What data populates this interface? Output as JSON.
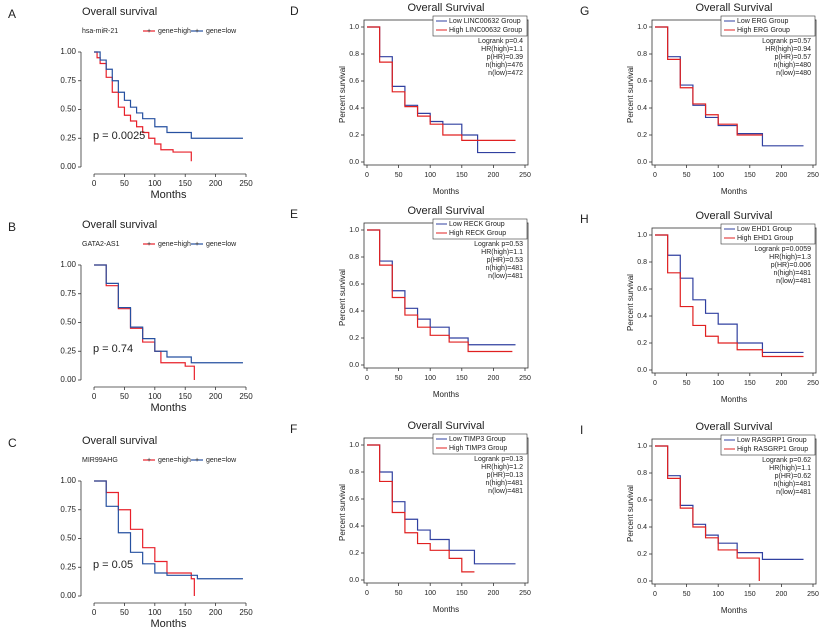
{
  "chart_data": [
    {
      "label": "A",
      "type": "line",
      "step": true,
      "style": "plain",
      "title": "Overall survival",
      "xlabel": "Months",
      "legend_title": "hsa-miR-21",
      "legend": "top",
      "annotations": [
        "p = 0.0025"
      ],
      "xlim": [
        -5,
        250
      ],
      "ylim": [
        0,
        1
      ],
      "xticks": [
        0,
        50,
        100,
        150,
        200,
        250
      ],
      "yticks": [
        {
          "value": 0,
          "label": "0.00"
        },
        {
          "value": 0.25,
          "label": "0.25"
        },
        {
          "value": 0.5,
          "label": "0.50"
        },
        {
          "value": 0.75,
          "label": "0.75"
        },
        {
          "value": 1,
          "label": "1.00"
        }
      ],
      "series": [
        {
          "name": "gene=high",
          "color": "#e8202a",
          "x": [
            0,
            5,
            10,
            20,
            30,
            40,
            50,
            60,
            70,
            80,
            90,
            100,
            110,
            130,
            160
          ],
          "values": [
            1,
            0.95,
            0.9,
            0.78,
            0.65,
            0.52,
            0.45,
            0.4,
            0.35,
            0.3,
            0.25,
            0.2,
            0.15,
            0.13,
            0.05
          ]
        },
        {
          "name": "gene=low",
          "color": "#2650a0",
          "x": [
            0,
            10,
            20,
            30,
            40,
            50,
            60,
            70,
            80,
            100,
            120,
            160,
            245
          ],
          "values": [
            1,
            0.93,
            0.85,
            0.75,
            0.65,
            0.58,
            0.52,
            0.47,
            0.42,
            0.35,
            0.3,
            0.25,
            0.25
          ]
        }
      ]
    },
    {
      "label": "B",
      "type": "line",
      "step": true,
      "style": "plain",
      "title": "Overall survival",
      "xlabel": "Months",
      "legend_title": "GATA2-AS1",
      "legend": "top",
      "annotations": [
        "p = 0.74"
      ],
      "xlim": [
        -5,
        250
      ],
      "ylim": [
        0,
        1
      ],
      "xticks": [
        0,
        50,
        100,
        150,
        200,
        250
      ],
      "yticks": [
        {
          "value": 0,
          "label": "0.00"
        },
        {
          "value": 0.25,
          "label": "0.25"
        },
        {
          "value": 0.5,
          "label": "0.50"
        },
        {
          "value": 0.75,
          "label": "0.75"
        },
        {
          "value": 1,
          "label": "1.00"
        }
      ],
      "series": [
        {
          "name": "gene=high",
          "color": "#e8202a",
          "x": [
            0,
            20,
            40,
            60,
            80,
            100,
            110,
            150,
            165
          ],
          "values": [
            1,
            0.82,
            0.62,
            0.45,
            0.33,
            0.25,
            0.15,
            0.12,
            0
          ]
        },
        {
          "name": "gene=low",
          "color": "#2650a0",
          "x": [
            0,
            20,
            40,
            60,
            80,
            100,
            120,
            160,
            245
          ],
          "values": [
            1,
            0.84,
            0.63,
            0.46,
            0.36,
            0.25,
            0.2,
            0.15,
            0.15
          ]
        }
      ]
    },
    {
      "label": "C",
      "type": "line",
      "step": true,
      "style": "plain",
      "title": "Overall survival",
      "xlabel": "Months",
      "legend_title": "MIR99AHG",
      "legend": "top",
      "annotations": [
        "p = 0.05"
      ],
      "xlim": [
        -5,
        250
      ],
      "ylim": [
        0,
        1
      ],
      "xticks": [
        0,
        50,
        100,
        150,
        200,
        250
      ],
      "yticks": [
        {
          "value": 0,
          "label": "0.00"
        },
        {
          "value": 0.25,
          "label": "0.25"
        },
        {
          "value": 0.5,
          "label": "0.50"
        },
        {
          "value": 0.75,
          "label": "0.75"
        },
        {
          "value": 1,
          "label": "1.00"
        }
      ],
      "series": [
        {
          "name": "gene=high",
          "color": "#e8202a",
          "x": [
            0,
            20,
            40,
            60,
            80,
            100,
            120,
            160,
            165
          ],
          "values": [
            1,
            0.9,
            0.75,
            0.58,
            0.42,
            0.3,
            0.2,
            0.15,
            0
          ]
        },
        {
          "name": "gene=low",
          "color": "#2650a0",
          "x": [
            0,
            20,
            40,
            60,
            80,
            100,
            120,
            170,
            245
          ],
          "values": [
            1,
            0.78,
            0.55,
            0.38,
            0.28,
            0.2,
            0.18,
            0.15,
            0.15
          ]
        }
      ]
    },
    {
      "label": "D",
      "type": "line",
      "step": true,
      "style": "framed",
      "title": "Overall Survival",
      "xlabel": "Months",
      "ylabel": "Percent survival",
      "legend": "top-right",
      "annotations": [
        "Logrank p=0.4",
        "HR(high)=1.1",
        "p(HR)=0.39",
        "n(high)=476",
        "n(low)=472"
      ],
      "xlim": [
        0,
        250
      ],
      "ylim": [
        0,
        1
      ],
      "xticks": [
        0,
        50,
        100,
        150,
        200,
        250
      ],
      "yticks": [
        {
          "value": 0,
          "label": "0.0"
        },
        {
          "value": 0.2,
          "label": "0.2"
        },
        {
          "value": 0.4,
          "label": "0.4"
        },
        {
          "value": 0.6,
          "label": "0.6"
        },
        {
          "value": 0.8,
          "label": "0.8"
        },
        {
          "value": 1,
          "label": "1.0"
        }
      ],
      "series": [
        {
          "name": "Low LINC00632 Group",
          "color": "#3040a0",
          "x": [
            0,
            20,
            40,
            60,
            80,
            100,
            120,
            150,
            175,
            235
          ],
          "values": [
            1,
            0.78,
            0.56,
            0.42,
            0.36,
            0.3,
            0.28,
            0.2,
            0.07,
            0.07
          ]
        },
        {
          "name": "High LINC00632 Group",
          "color": "#e02020",
          "x": [
            0,
            20,
            40,
            60,
            80,
            100,
            120,
            150,
            235
          ],
          "values": [
            1,
            0.74,
            0.52,
            0.41,
            0.34,
            0.28,
            0.2,
            0.16,
            0.16
          ]
        }
      ]
    },
    {
      "label": "E",
      "type": "line",
      "step": true,
      "style": "framed",
      "title": "Overall Survival",
      "xlabel": "Months",
      "ylabel": "Percent survival",
      "legend": "top-right",
      "annotations": [
        "Logrank p=0.53",
        "HR(high)=1.1",
        "p(HR)=0.53",
        "n(high)=481",
        "n(low)=481"
      ],
      "xlim": [
        0,
        250
      ],
      "ylim": [
        0,
        1
      ],
      "xticks": [
        0,
        50,
        100,
        150,
        200,
        250
      ],
      "yticks": [
        {
          "value": 0,
          "label": "0.0"
        },
        {
          "value": 0.2,
          "label": "0.2"
        },
        {
          "value": 0.4,
          "label": "0.4"
        },
        {
          "value": 0.6,
          "label": "0.6"
        },
        {
          "value": 0.8,
          "label": "0.8"
        },
        {
          "value": 1,
          "label": "1.0"
        }
      ],
      "series": [
        {
          "name": "Low RECK Group",
          "color": "#3040a0",
          "x": [
            0,
            20,
            40,
            60,
            80,
            100,
            130,
            160,
            235
          ],
          "values": [
            1,
            0.77,
            0.55,
            0.42,
            0.34,
            0.28,
            0.2,
            0.15,
            0.15
          ]
        },
        {
          "name": "High RECK Group",
          "color": "#e02020",
          "x": [
            0,
            20,
            40,
            60,
            80,
            100,
            130,
            160,
            230
          ],
          "values": [
            1,
            0.74,
            0.5,
            0.37,
            0.28,
            0.22,
            0.17,
            0.1,
            0.1
          ]
        }
      ]
    },
    {
      "label": "F",
      "type": "line",
      "step": true,
      "style": "framed",
      "title": "Overall Survival",
      "xlabel": "Months",
      "ylabel": "Percent survival",
      "legend": "top-right",
      "annotations": [
        "Logrank p=0.13",
        "HR(high)=1.2",
        "p(HR)=0.13",
        "n(high)=481",
        "n(low)=481"
      ],
      "xlim": [
        0,
        250
      ],
      "ylim": [
        0,
        1
      ],
      "xticks": [
        0,
        50,
        100,
        150,
        200,
        250
      ],
      "yticks": [
        {
          "value": 0,
          "label": "0.0"
        },
        {
          "value": 0.2,
          "label": "0.2"
        },
        {
          "value": 0.4,
          "label": "0.4"
        },
        {
          "value": 0.6,
          "label": "0.6"
        },
        {
          "value": 0.8,
          "label": "0.8"
        },
        {
          "value": 1,
          "label": "1.0"
        }
      ],
      "series": [
        {
          "name": "Low TIMP3 Group",
          "color": "#3040a0",
          "x": [
            0,
            20,
            40,
            60,
            80,
            100,
            130,
            170,
            235
          ],
          "values": [
            1,
            0.8,
            0.58,
            0.45,
            0.37,
            0.3,
            0.22,
            0.12,
            0.12
          ]
        },
        {
          "name": "High TIMP3 Group",
          "color": "#e02020",
          "x": [
            0,
            20,
            40,
            60,
            80,
            100,
            130,
            150,
            170
          ],
          "values": [
            1,
            0.73,
            0.5,
            0.35,
            0.27,
            0.22,
            0.16,
            0.06,
            0.06
          ]
        }
      ]
    },
    {
      "label": "G",
      "type": "line",
      "step": true,
      "style": "framed",
      "title": "Overall Survival",
      "xlabel": "Months",
      "ylabel": "Percent survival",
      "legend": "top-right",
      "annotations": [
        "Logrank p=0.57",
        "HR(high)=0.94",
        "p(HR)=0.57",
        "n(high)=480",
        "n(low)=480"
      ],
      "xlim": [
        0,
        250
      ],
      "ylim": [
        0,
        1
      ],
      "xticks": [
        0,
        50,
        100,
        150,
        200,
        250
      ],
      "yticks": [
        {
          "value": 0,
          "label": "0.0"
        },
        {
          "value": 0.2,
          "label": "0.2"
        },
        {
          "value": 0.4,
          "label": "0.4"
        },
        {
          "value": 0.6,
          "label": "0.6"
        },
        {
          "value": 0.8,
          "label": "0.8"
        },
        {
          "value": 1,
          "label": "1.0"
        }
      ],
      "series": [
        {
          "name": "Low ERG Group",
          "color": "#3040a0",
          "x": [
            0,
            20,
            40,
            60,
            80,
            100,
            130,
            170,
            235
          ],
          "values": [
            1,
            0.78,
            0.57,
            0.42,
            0.33,
            0.27,
            0.21,
            0.12,
            0.12
          ]
        },
        {
          "name": "High ERG Group",
          "color": "#e02020",
          "x": [
            0,
            20,
            40,
            60,
            80,
            100,
            130,
            170
          ],
          "values": [
            1,
            0.76,
            0.55,
            0.43,
            0.35,
            0.28,
            0.2,
            0.2
          ]
        }
      ]
    },
    {
      "label": "H",
      "type": "line",
      "step": true,
      "style": "framed",
      "title": "Overall Survival",
      "xlabel": "Months",
      "ylabel": "Percent survival",
      "legend": "top-right",
      "annotations": [
        "Logrank p=0.0059",
        "HR(high)=1.3",
        "p(HR)=0.006",
        "n(high)=481",
        "n(low)=481"
      ],
      "xlim": [
        0,
        250
      ],
      "ylim": [
        0,
        1
      ],
      "xticks": [
        0,
        50,
        100,
        150,
        200,
        250
      ],
      "yticks": [
        {
          "value": 0,
          "label": "0.0"
        },
        {
          "value": 0.2,
          "label": "0.2"
        },
        {
          "value": 0.4,
          "label": "0.4"
        },
        {
          "value": 0.6,
          "label": "0.6"
        },
        {
          "value": 0.8,
          "label": "0.8"
        },
        {
          "value": 1,
          "label": "1.0"
        }
      ],
      "series": [
        {
          "name": "Low EHD1 Group",
          "color": "#3040a0",
          "x": [
            0,
            20,
            40,
            60,
            80,
            100,
            130,
            170,
            235
          ],
          "values": [
            1,
            0.85,
            0.68,
            0.52,
            0.42,
            0.34,
            0.2,
            0.13,
            0.13
          ]
        },
        {
          "name": "High EHD1 Group",
          "color": "#e02020",
          "x": [
            0,
            20,
            40,
            60,
            80,
            100,
            130,
            170,
            235
          ],
          "values": [
            1,
            0.72,
            0.47,
            0.33,
            0.25,
            0.2,
            0.15,
            0.1,
            0.1
          ]
        }
      ]
    },
    {
      "label": "I",
      "type": "line",
      "step": true,
      "style": "framed",
      "title": "Overall Survival",
      "xlabel": "Months",
      "ylabel": "Percent survival",
      "legend": "top-right",
      "annotations": [
        "Logrank p=0.62",
        "HR(high)=1.1",
        "p(HR)=0.62",
        "n(high)=481",
        "n(low)=481"
      ],
      "xlim": [
        0,
        250
      ],
      "ylim": [
        0,
        1
      ],
      "xticks": [
        0,
        50,
        100,
        150,
        200,
        250
      ],
      "yticks": [
        {
          "value": 0,
          "label": "0.0"
        },
        {
          "value": 0.2,
          "label": "0.2"
        },
        {
          "value": 0.4,
          "label": "0.4"
        },
        {
          "value": 0.6,
          "label": "0.6"
        },
        {
          "value": 0.8,
          "label": "0.8"
        },
        {
          "value": 1,
          "label": "1.0"
        }
      ],
      "series": [
        {
          "name": "Low RASGRP1 Group",
          "color": "#3040a0",
          "x": [
            0,
            20,
            40,
            60,
            80,
            100,
            130,
            170,
            235
          ],
          "values": [
            1,
            0.78,
            0.56,
            0.42,
            0.34,
            0.28,
            0.21,
            0.16,
            0.16
          ]
        },
        {
          "name": "High RASGRP1 Group",
          "color": "#e02020",
          "x": [
            0,
            20,
            40,
            60,
            80,
            100,
            130,
            165
          ],
          "values": [
            1,
            0.76,
            0.54,
            0.4,
            0.32,
            0.23,
            0.17,
            0
          ]
        }
      ]
    }
  ]
}
